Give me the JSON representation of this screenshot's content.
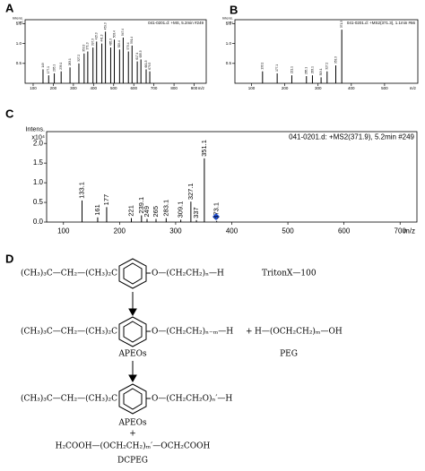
{
  "panels": [
    "A",
    "B",
    "C",
    "D"
  ],
  "chart_data": [
    {
      "type": "bar",
      "title": "041-0201.d: +MS, 5.2min #249",
      "y_label": "Intens.",
      "y_unit": "x10⁵",
      "x_label": "m/z",
      "x": [
        149.0,
        177.1,
        205.1,
        239.1,
        283.1,
        327.2,
        353.3,
        371.3,
        397.3,
        415.3,
        441.3,
        459.3,
        485.3,
        503.4,
        529.4,
        547.4,
        573.4,
        591.4,
        617.4,
        635.5,
        661.5,
        679.5
      ],
      "values": [
        0.35,
        0.2,
        0.25,
        0.3,
        0.4,
        0.5,
        0.75,
        0.8,
        0.9,
        1.05,
        1.0,
        1.3,
        0.9,
        1.1,
        0.85,
        1.15,
        0.8,
        0.95,
        0.55,
        0.6,
        0.35,
        0.3
      ],
      "color": "#000000",
      "xlim": [
        60,
        960
      ],
      "xticks": [
        100,
        200,
        300,
        400,
        500,
        600,
        700,
        800,
        900
      ],
      "ylim": [
        0,
        1.6
      ],
      "yticks": [
        0.5,
        {
          "value": 1,
          "label": "1.0"
        },
        1.5
      ]
    },
    {
      "type": "bar",
      "title": "041-0201.d: +MS2(371.3), 1.1min #66",
      "y_label": "Intens.",
      "y_unit": "x10⁴",
      "x_label": "m/z",
      "x": [
        133.1,
        177.1,
        221.1,
        265.1,
        283.1,
        309.1,
        327.2,
        353.3,
        371.3
      ],
      "values": [
        0.3,
        0.25,
        0.2,
        0.18,
        0.2,
        0.15,
        0.3,
        0.45,
        1.35
      ],
      "color": "#000000",
      "xlim": [
        50,
        600
      ],
      "xticks": [
        100,
        200,
        300,
        400,
        500
      ],
      "ylim": [
        0,
        1.6
      ],
      "yticks": [
        0.5,
        {
          "value": 1,
          "label": "1.0"
        },
        1.5
      ]
    },
    {
      "type": "bar",
      "title": "041-0201.d: +MS2(371.9), 5.2min #249",
      "y_label": "Intens.",
      "y_unit": "x10⁴",
      "x_label": "m/z",
      "x": [
        133.1,
        161.0,
        177.0,
        221.0,
        239.1,
        249.0,
        265.0,
        283.1,
        309.1,
        327.1,
        337.0,
        351.1,
        373.1
      ],
      "values": [
        0.55,
        0.12,
        0.38,
        0.1,
        0.17,
        0.08,
        0.08,
        0.1,
        0.06,
        0.52,
        0.05,
        1.62,
        0.03
      ],
      "color": "#000000",
      "xlim": [
        70,
        730
      ],
      "xticks": [
        100,
        200,
        300,
        400,
        500,
        600,
        700
      ],
      "ylim": [
        0,
        2.3
      ],
      "yticks": [
        {
          "value": 0,
          "label": "0.0"
        },
        0.5,
        {
          "value": 1,
          "label": "1.0"
        },
        1.5,
        {
          "value": 2,
          "label": "2.0"
        }
      ]
    }
  ],
  "scheme": {
    "row1": {
      "left": "(CH₃)₃C—CH₂—(CH₃)₂C",
      "right": "O—(CH₂CH₂)ₙ—H",
      "name": "TritonX—100"
    },
    "row2": {
      "left": "(CH₃)₃C—CH₂—(CH₃)₂C",
      "right": "O—(CH₂CH₂)ₙ₋ₘ—H",
      "plus": "+",
      "peg_formula": "H—(OCH₂CH₂)ₘ—OH",
      "name": "APEOs",
      "peg_name": "PEG"
    },
    "row3": {
      "left": "(CH₃)₃C—CH₂—(CH₃)₂C",
      "right": "O—(CH₂CH₂O)ₙ′—H",
      "name": "APEOs",
      "plus": "+",
      "dcpeg_formula": "H₂COOH—(OCH₂CH₂)ₘ′—OCH₂COOH",
      "dcpeg_name": "DCPEG"
    }
  }
}
